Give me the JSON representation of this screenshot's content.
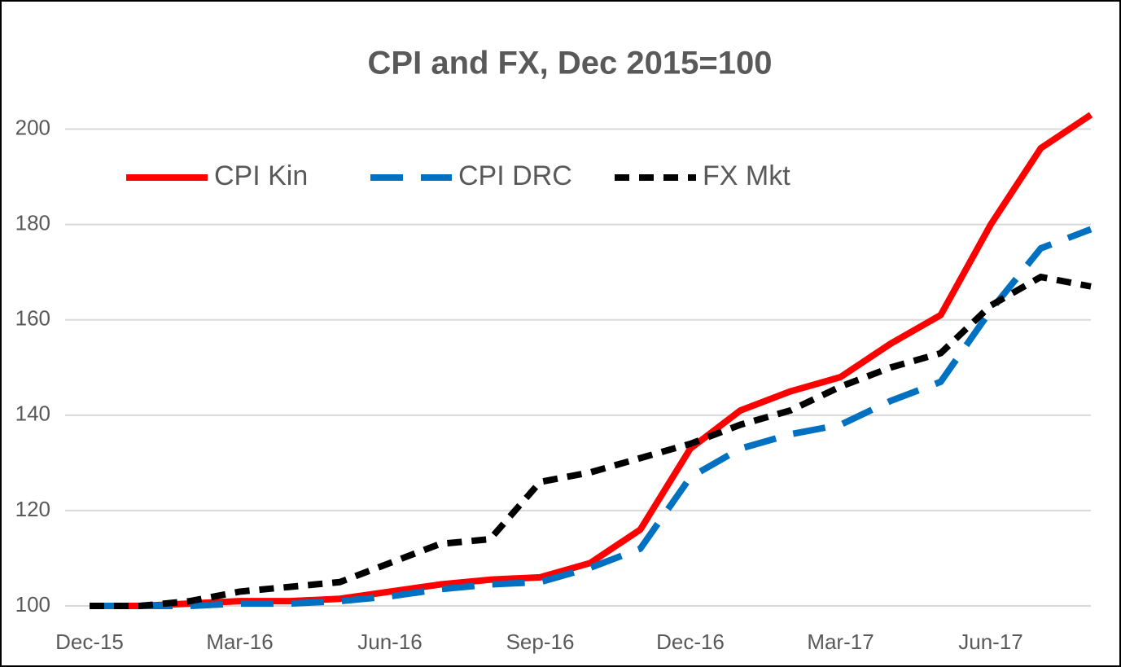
{
  "chart_data": {
    "type": "line",
    "title": "CPI and FX, Dec 2015=100",
    "categories": [
      "Dec-15",
      null,
      null,
      "Mar-16",
      null,
      null,
      "Jun-16",
      null,
      null,
      "Sep-16",
      null,
      null,
      "Dec-16",
      null,
      null,
      "Mar-17",
      null,
      null,
      "Jun-17",
      null,
      null
    ],
    "series": [
      {
        "name": "CPI Kin",
        "color": "#ff0000",
        "values": [
          100,
          100,
          100.5,
          101,
          101,
          101.5,
          103,
          104.5,
          105.5,
          106,
          109,
          116,
          133,
          141,
          145,
          148,
          155,
          161,
          180,
          196,
          203
        ]
      },
      {
        "name": "CPI DRC",
        "color": "#0070c0",
        "values": [
          100,
          100,
          100,
          100.5,
          100.5,
          101,
          102,
          103.5,
          104.5,
          105,
          108,
          112,
          127,
          133,
          136,
          138,
          143,
          147,
          162,
          175,
          179
        ]
      },
      {
        "name": "FX Mkt",
        "color": "#000000",
        "values": [
          100,
          100,
          101,
          103,
          104,
          105,
          109,
          113,
          114,
          126,
          128,
          131,
          134,
          138,
          141,
          146,
          150,
          153,
          163,
          169,
          167
        ]
      }
    ],
    "ylim": [
      100,
      210
    ],
    "yticks": [
      100,
      120,
      140,
      160,
      180,
      200
    ],
    "grid": true,
    "legend": "top-left"
  }
}
